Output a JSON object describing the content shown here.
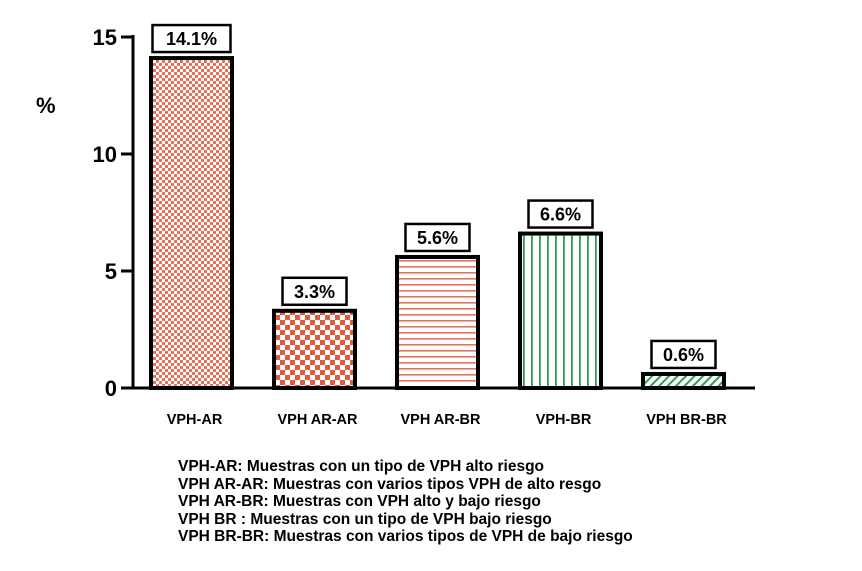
{
  "chart_data": {
    "type": "bar",
    "title": "",
    "xlabel": "",
    "ylabel": "%",
    "ylim": [
      0,
      15
    ],
    "yticks": [
      0,
      5,
      10,
      15
    ],
    "categories": [
      "VPH-AR",
      "VPH AR-AR",
      "VPH AR-BR",
      "VPH-BR",
      "VPH BR-BR"
    ],
    "values": [
      14.1,
      3.3,
      5.6,
      6.6,
      0.6
    ],
    "data_labels": [
      "14.1%",
      "3.3%",
      "5.6%",
      "6.6%",
      "0.6%"
    ],
    "fills": [
      {
        "pattern": "fine-checker",
        "color": "#e8735c"
      },
      {
        "pattern": "checker",
        "color": "#e8735c"
      },
      {
        "pattern": "horizontal-lines",
        "color": "#e8735c"
      },
      {
        "pattern": "vertical-lines",
        "color": "#2e9e55"
      },
      {
        "pattern": "diagonal-lines",
        "color": "#2e9e55"
      }
    ],
    "grid": false,
    "legend_position": "bottom",
    "legend": [
      "VPH-AR: Muestras con un tipo de VPH  alto riesgo",
      "VPH AR-AR: Muestras con varios tipos VPH de alto resgo",
      "VPH AR-BR: Muestras con VPH alto y bajo riesgo",
      "VPH BR : Muestras con un tipo de VPH bajo riesgo",
      "VPH BR-BR: Muestras con varios tipos de VPH de bajo riesgo"
    ]
  }
}
